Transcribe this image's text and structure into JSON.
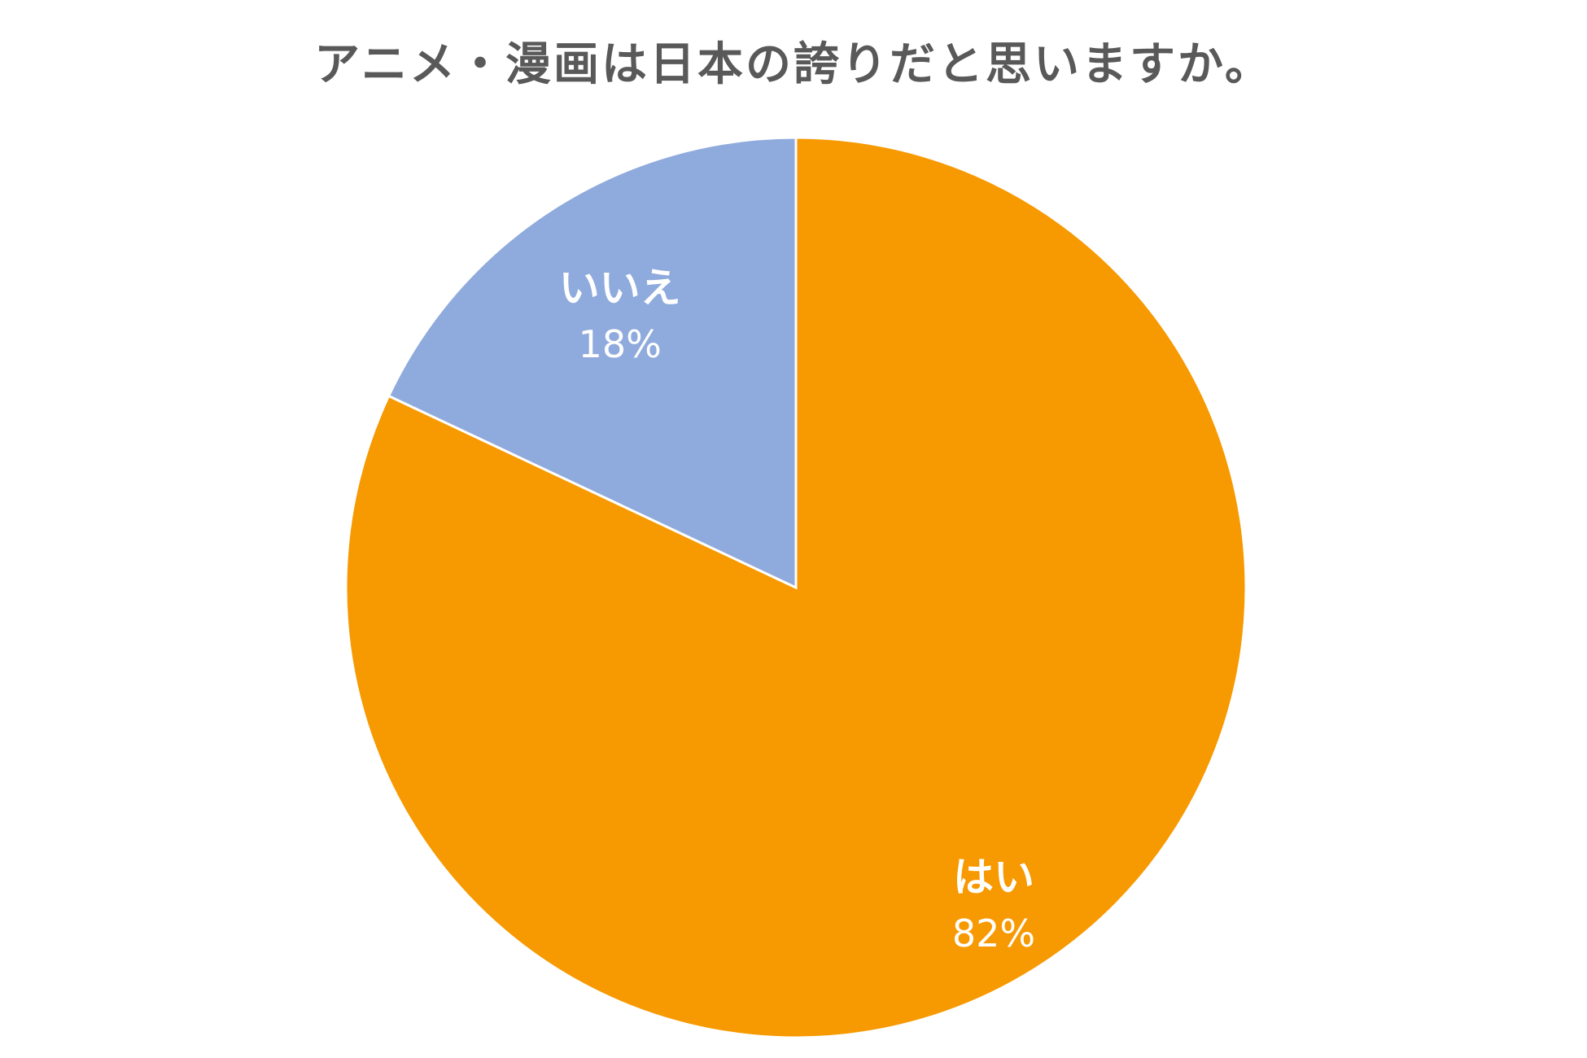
{
  "chart_data": {
    "type": "pie",
    "title": "アニメ・漫画は日本の誇りだと思いますか。",
    "start_angle_deg": 0,
    "direction": "clockwise",
    "slices": [
      {
        "label": "はい",
        "value": 82,
        "value_label": "82%",
        "color": "#F79900"
      },
      {
        "label": "いいえ",
        "value": 18,
        "value_label": "18%",
        "color": "#8FAADC"
      }
    ],
    "slice_border_color": "#ffffff",
    "label_color": "#ffffff",
    "legend": "none"
  }
}
